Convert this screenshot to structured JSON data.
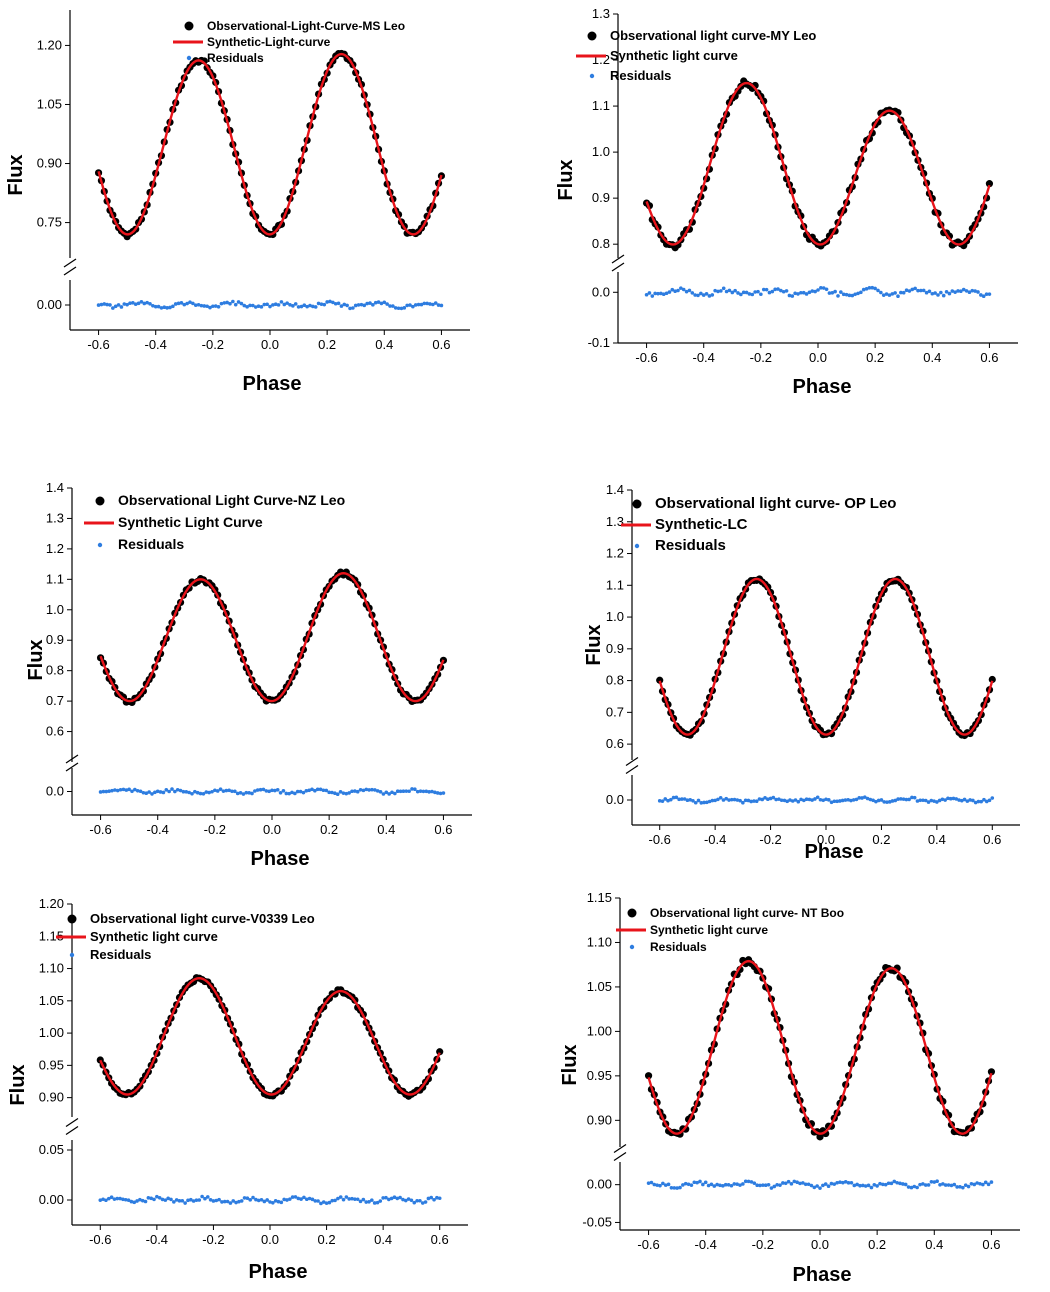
{
  "colors": {
    "observed": "#000000",
    "synthetic": "#e8141b",
    "residuals": "#2e7de0",
    "axis": "#000000"
  },
  "chart_data": [
    {
      "type": "line",
      "star": "MS Leo",
      "ylabel": "Flux",
      "xlabel": "Phase",
      "xlim": [
        -0.7,
        0.7
      ],
      "xticks": [
        "-0.6",
        "-0.4",
        "-0.2",
        "0.0",
        "0.2",
        "0.4",
        "0.6"
      ],
      "upper_ylim": [
        0.66,
        1.29
      ],
      "upper_yticks": [
        "0.75",
        "0.90",
        "1.05",
        "1.20"
      ],
      "lower_ylim": [
        -0.05,
        0.05
      ],
      "lower_yticks": [
        "0.00"
      ],
      "model": {
        "mean": 0.945,
        "amp": 0.225,
        "asym": 0.008,
        "noise": 0.006
      },
      "legend": {
        "observed": "Observational-Light-Curve-MS Leo",
        "synthetic": "Synthetic-Light-curve",
        "residuals": "Residuals"
      }
    },
    {
      "type": "line",
      "star": "MY Leo",
      "ylabel": "Flux",
      "xlabel": "Phase",
      "xlim": [
        -0.7,
        0.7
      ],
      "xticks": [
        "-0.6",
        "-0.4",
        "-0.2",
        "0.0",
        "0.2",
        "0.4",
        "0.6"
      ],
      "upper_ylim": [
        0.77,
        1.3
      ],
      "upper_yticks": [
        "0.8",
        "0.9",
        "1.0",
        "1.1",
        "1.2",
        "1.3"
      ],
      "lower_ylim": [
        -0.1,
        0.04
      ],
      "lower_yticks": [
        "0.0",
        "-0.1"
      ],
      "model": {
        "mean": 0.96,
        "amp": 0.16,
        "asym": -0.03,
        "noise": 0.008
      },
      "legend": {
        "observed": "Observational light curve-MY Leo",
        "synthetic": "Synthetic light curve",
        "residuals": "Residuals"
      }
    },
    {
      "type": "line",
      "star": "NZ Leo",
      "ylabel": "Flux",
      "xlabel": "Phase",
      "xlim": [
        -0.7,
        0.7
      ],
      "xticks": [
        "-0.6",
        "-0.4",
        "-0.2",
        "0.0",
        "0.2",
        "0.4",
        "0.6"
      ],
      "upper_ylim": [
        0.5,
        1.4
      ],
      "upper_yticks": [
        "0.6",
        "0.7",
        "0.8",
        "0.9",
        "1.0",
        "1.1",
        "1.2",
        "1.3",
        "1.4"
      ],
      "lower_ylim": [
        -0.06,
        0.06
      ],
      "lower_yticks": [
        "0.0"
      ],
      "model": {
        "mean": 0.905,
        "amp": 0.205,
        "asym": 0.01,
        "noise": 0.006
      },
      "legend": {
        "observed": "Observational Light Curve-NZ Leo",
        "synthetic": "Synthetic Light Curve",
        "residuals": "Residuals"
      }
    },
    {
      "type": "line",
      "star": "OP Leo",
      "ylabel": "Flux",
      "xlabel": "Phase",
      "xlim": [
        -0.7,
        0.7
      ],
      "xticks": [
        "-0.6",
        "-0.4",
        "-0.2",
        "0.0",
        "0.2",
        "0.4",
        "0.6"
      ],
      "upper_ylim": [
        0.55,
        1.4
      ],
      "upper_yticks": [
        "0.6",
        "0.7",
        "0.8",
        "0.9",
        "1.0",
        "1.1",
        "1.2",
        "1.3",
        "1.4"
      ],
      "lower_ylim": [
        -0.06,
        0.06
      ],
      "lower_yticks": [
        "0.0"
      ],
      "model": {
        "mean": 0.875,
        "amp": 0.245,
        "asym": 0.0,
        "noise": 0.006
      },
      "legend": {
        "observed": "Observational light curve- OP Leo",
        "synthetic": "Synthetic-LC",
        "residuals": "Residuals"
      }
    },
    {
      "type": "line",
      "star": "V0339 Leo",
      "ylabel": "Flux",
      "xlabel": "Phase",
      "xlim": [
        -0.7,
        0.7
      ],
      "xticks": [
        "-0.6",
        "-0.4",
        "-0.2",
        "0.0",
        "0.2",
        "0.4",
        "0.6"
      ],
      "upper_ylim": [
        0.87,
        1.2
      ],
      "upper_yticks": [
        "0.90",
        "0.95",
        "1.00",
        "1.05",
        "1.10",
        "1.15",
        "1.20"
      ],
      "lower_ylim": [
        -0.025,
        0.06
      ],
      "lower_yticks": [
        "0.00",
        "0.05"
      ],
      "model": {
        "mean": 0.99,
        "amp": 0.085,
        "asym": -0.01,
        "noise": 0.003
      },
      "legend": {
        "observed": "Observational light curve-V0339 Leo",
        "synthetic": "Synthetic light curve",
        "residuals": "Residuals"
      }
    },
    {
      "type": "line",
      "star": "NT Boo",
      "ylabel": "Flux",
      "xlabel": "Phase",
      "xlim": [
        -0.7,
        0.7
      ],
      "xticks": [
        "-0.6",
        "-0.4",
        "-0.2",
        "0.0",
        "0.2",
        "0.4",
        "0.6"
      ],
      "upper_ylim": [
        0.87,
        1.15
      ],
      "upper_yticks": [
        "0.90",
        "0.95",
        "1.00",
        "1.05",
        "1.10",
        "1.15"
      ],
      "lower_ylim": [
        -0.06,
        0.03
      ],
      "lower_yticks": [
        "0.00",
        "-0.05"
      ],
      "model": {
        "mean": 0.98,
        "amp": 0.095,
        "asym": -0.004,
        "noise": 0.004
      },
      "legend": {
        "observed": "Observational light curve- NT Boo",
        "synthetic": "Synthetic light curve",
        "residuals": "Residuals"
      }
    }
  ]
}
